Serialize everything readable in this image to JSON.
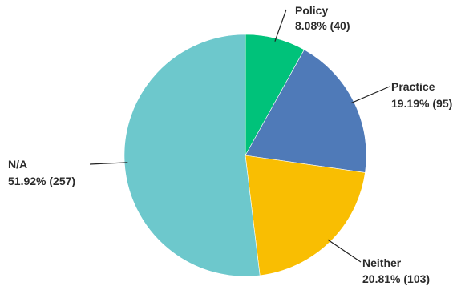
{
  "chart_data": {
    "type": "pie",
    "title": "",
    "start_angle_deg": 0,
    "direction": "clockwise",
    "slices": [
      {
        "name": "Policy",
        "percent": 8.08,
        "count": 40,
        "pct_label": "8.08% (40)",
        "color": "#00C27A"
      },
      {
        "name": "Practice",
        "percent": 19.19,
        "count": 95,
        "pct_label": "19.19% (95)",
        "color": "#4F7AB8"
      },
      {
        "name": "Neither",
        "percent": 20.81,
        "count": 103,
        "pct_label": "20.81% (103)",
        "color": "#F9BE02"
      },
      {
        "name": "N/A",
        "percent": 51.92,
        "count": 257,
        "pct_label": "51.92% (257)",
        "color": "#6DC8CC"
      }
    ]
  }
}
